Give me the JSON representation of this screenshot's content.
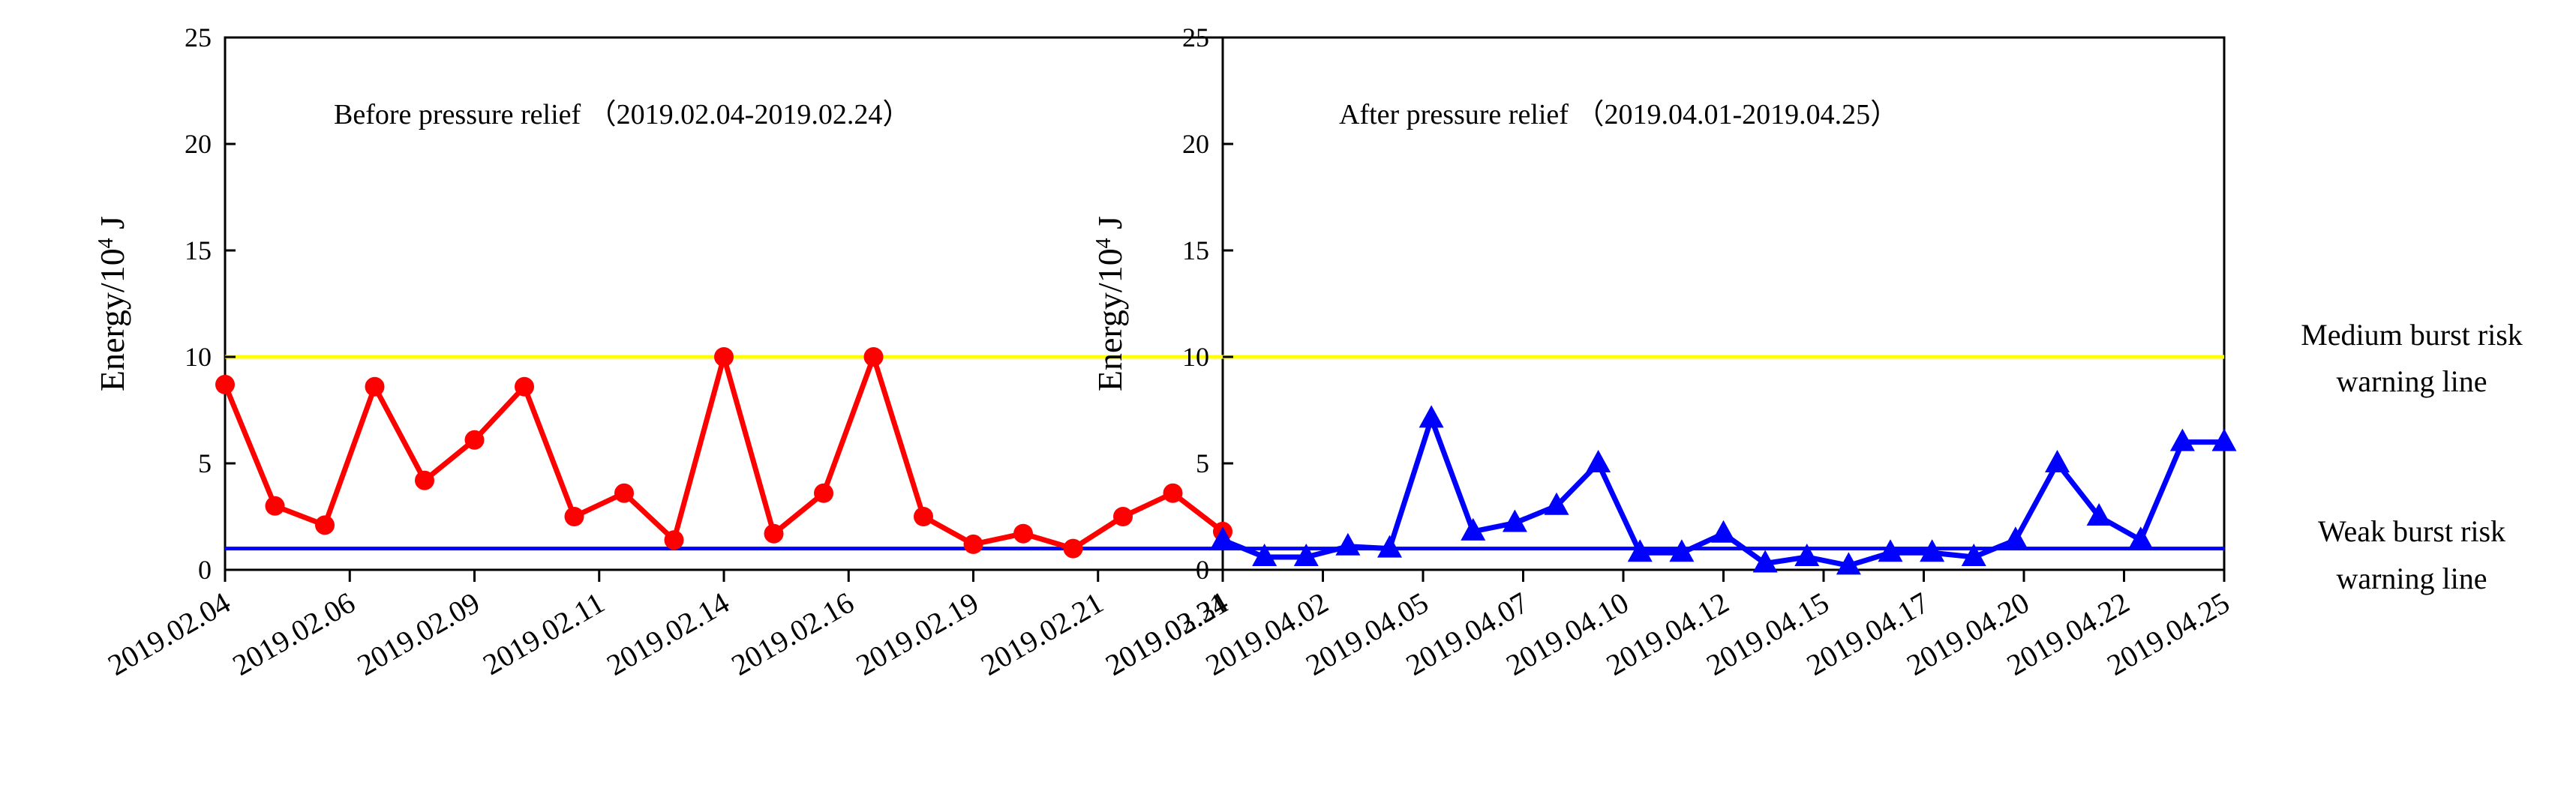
{
  "chart_data": {
    "type": "line",
    "ylim": [
      0,
      25
    ],
    "yticks": [
      "0",
      "5",
      "10",
      "15",
      "20",
      "25"
    ],
    "thresholds": [
      {
        "name": "medium",
        "value": 10,
        "color": "#ffff00",
        "label_line1": "Medium burst risk",
        "label_line2": "warning line"
      },
      {
        "name": "weak",
        "value": 1,
        "color": "#0000ff",
        "label_line1": "Weak burst risk",
        "label_line2": "warning line"
      }
    ],
    "panels": [
      {
        "title": "Before pressure relief （2019.02.04-2019.02.24）",
        "ylabel_main": "Energy/10",
        "ylabel_sup": "4",
        "ylabel_unit": " J",
        "series_color": "#ff0000",
        "marker": "circle",
        "x_tick_labels": [
          "2019.02.04",
          "2019.02.06",
          "2019.02.09",
          "2019.02.11",
          "2019.02.14",
          "2019.02.16",
          "2019.02.19",
          "2019.02.21",
          "2019.02.24"
        ],
        "values": [
          8.7,
          3.0,
          2.1,
          8.6,
          4.2,
          6.1,
          8.6,
          2.5,
          3.6,
          1.4,
          10.0,
          1.7,
          3.6,
          10.0,
          2.5,
          1.2,
          1.7,
          1.0,
          2.5,
          3.6,
          1.8
        ]
      },
      {
        "title": "After pressure relief （2019.04.01-2019.04.25）",
        "ylabel_main": "Energy/10",
        "ylabel_sup": "4",
        "ylabel_unit": " J",
        "series_color": "#0000ff",
        "marker": "triangle",
        "x_tick_labels": [
          "2019.03.31",
          "2019.04.02",
          "2019.04.05",
          "2019.04.07",
          "2019.04.10",
          "2019.04.12",
          "2019.04.15",
          "2019.04.17",
          "2019.04.20",
          "2019.04.22",
          "2019.04.25"
        ],
        "values": [
          1.4,
          0.6,
          0.6,
          1.1,
          1.0,
          7.1,
          1.8,
          2.2,
          3.0,
          5.0,
          0.8,
          0.8,
          1.7,
          0.3,
          0.6,
          0.2,
          0.8,
          0.8,
          0.6,
          1.4,
          5.0,
          2.5,
          1.4,
          6.0,
          6.0
        ]
      }
    ]
  }
}
